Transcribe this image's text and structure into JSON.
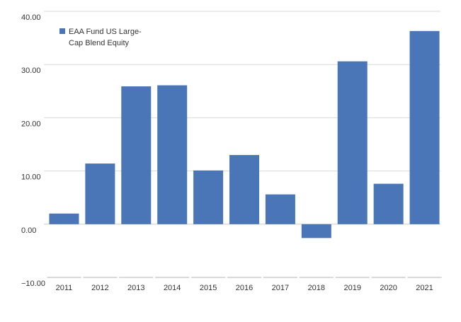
{
  "chart_data": {
    "type": "bar",
    "categories": [
      "2011",
      "2012",
      "2013",
      "2014",
      "2015",
      "2016",
      "2017",
      "2018",
      "2019",
      "2020",
      "2021"
    ],
    "series": [
      {
        "name": "EAA Fund US Large-Cap Blend Equity",
        "legend_lines": [
          "EAA Fund US Large-",
          "Cap Blend Equity"
        ],
        "values": [
          2.0,
          11.4,
          25.9,
          26.1,
          10.1,
          13.0,
          5.6,
          -2.6,
          30.6,
          7.6,
          36.3
        ],
        "color": "#4a76b8"
      }
    ],
    "yticks": [
      "40.00",
      "30.00",
      "20.00",
      "10.00",
      "0.00",
      "−10.00"
    ],
    "ylim": [
      -10,
      40
    ],
    "grid": true,
    "legend_position": "top-left",
    "title": "",
    "xlabel": "",
    "ylabel": ""
  }
}
